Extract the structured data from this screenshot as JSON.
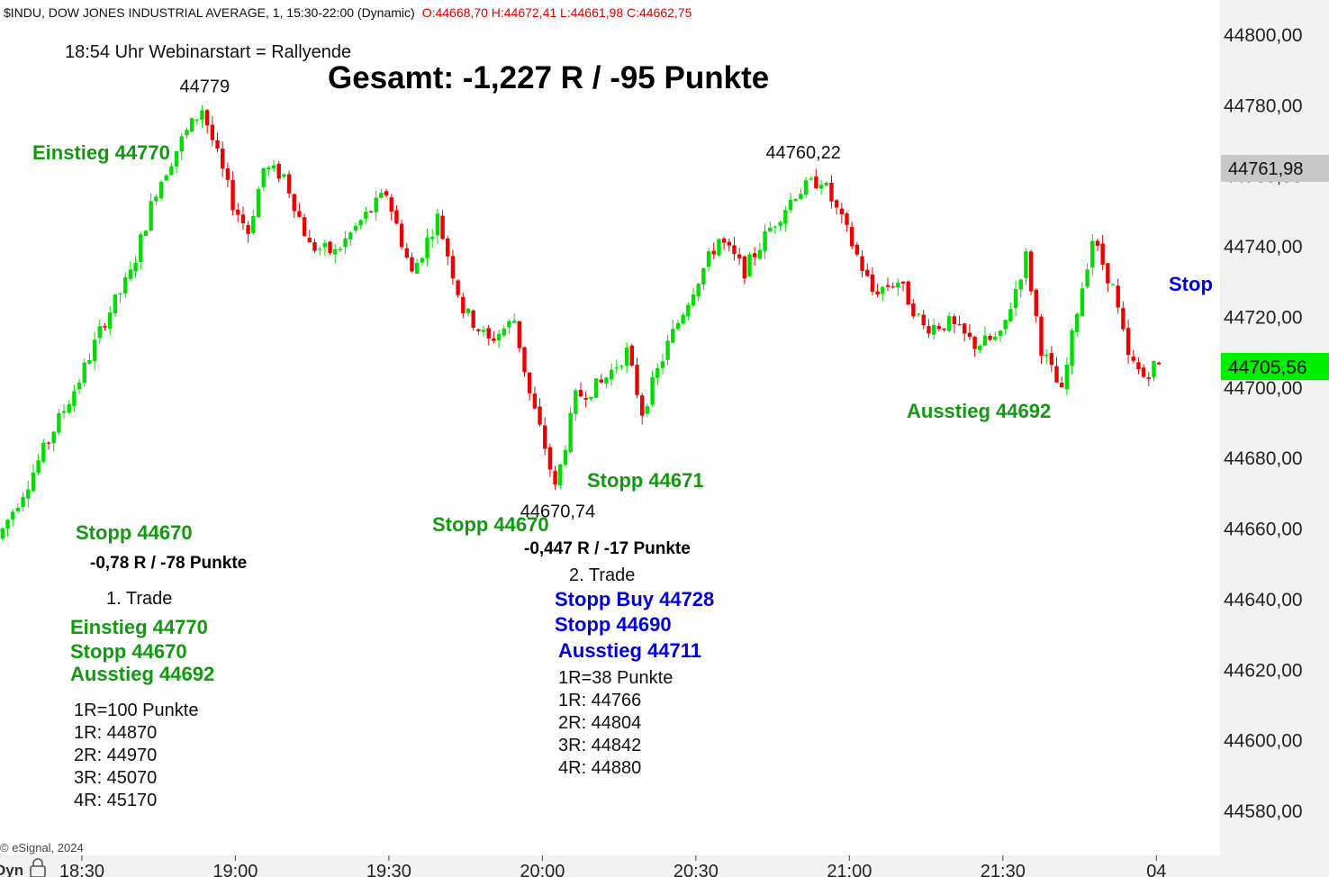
{
  "header": {
    "symbol_text": "$INDU, DOW JONES INDUSTRIAL AVERAGE, 1, 15:30-22:00 (Dynamic)",
    "ohlc_text": "O:44668,70 H:44672,41 L:44661,98 C:44662,75"
  },
  "watermark": "© eSignal, 2024",
  "bottom_left_label": "Dyn",
  "colors": {
    "up": "#00dd00",
    "down": "#ee0000",
    "green_text": "#119911",
    "blue_text": "#0000dd",
    "axis_bg": "#f2f2f2",
    "last_price_bg": "#00ee00",
    "price_tag_bg": "#c8c8c8"
  },
  "chart_data": {
    "type": "candlestick",
    "x_ticks": [
      "18:30",
      "19:00",
      "19:30",
      "20:00",
      "20:30",
      "21:00",
      "21:30",
      "04"
    ],
    "y_ticks": [
      "44800,00",
      "44780,00",
      "44760,00",
      "44740,00",
      "44720,00",
      "44700,00",
      "44680,00",
      "44660,00",
      "44640,00",
      "44620,00",
      "44600,00",
      "44580,00"
    ],
    "ylim": [
      44575,
      44810
    ],
    "x_range_minutes": [
      "18:14",
      "22:01"
    ],
    "price_tags": {
      "tag": "44761,98",
      "last": "44705,56"
    },
    "path_points": [
      [
        "18:14",
        44657
      ],
      [
        "18:20",
        44673
      ],
      [
        "18:25",
        44688
      ],
      [
        "18:30",
        44702
      ],
      [
        "18:35",
        44719
      ],
      [
        "18:40",
        44732
      ],
      [
        "18:45",
        44756
      ],
      [
        "18:50",
        44770
      ],
      [
        "18:54",
        44779
      ],
      [
        "18:58",
        44761
      ],
      [
        "19:00",
        44752
      ],
      [
        "19:03",
        44744
      ],
      [
        "19:06",
        44762
      ],
      [
        "19:10",
        44760
      ],
      [
        "19:15",
        44740
      ],
      [
        "19:20",
        44738
      ],
      [
        "19:25",
        44747
      ],
      [
        "19:30",
        44755
      ],
      [
        "19:35",
        44732
      ],
      [
        "19:40",
        44748
      ],
      [
        "19:45",
        44722
      ],
      [
        "19:50",
        44713
      ],
      [
        "19:55",
        44719
      ],
      [
        "19:58",
        44698
      ],
      [
        "20:01",
        44683
      ],
      [
        "20:03",
        44671
      ],
      [
        "20:07",
        44697
      ],
      [
        "20:12",
        44701
      ],
      [
        "20:17",
        44710
      ],
      [
        "20:20",
        44693
      ],
      [
        "20:25",
        44712
      ],
      [
        "20:30",
        44728
      ],
      [
        "20:35",
        44742
      ],
      [
        "20:40",
        44733
      ],
      [
        "20:45",
        44745
      ],
      [
        "20:50",
        44755
      ],
      [
        "20:55",
        44759
      ],
      [
        "21:00",
        44744
      ],
      [
        "21:05",
        44727
      ],
      [
        "21:10",
        44730
      ],
      [
        "21:15",
        44717
      ],
      [
        "21:20",
        44718
      ],
      [
        "21:25",
        44712
      ],
      [
        "21:30",
        44714
      ],
      [
        "21:35",
        44737
      ],
      [
        "21:38",
        44711
      ],
      [
        "21:42",
        44698
      ],
      [
        "21:45",
        44722
      ],
      [
        "21:48",
        44742
      ],
      [
        "21:52",
        44728
      ],
      [
        "21:55",
        44708
      ],
      [
        "21:58",
        44703
      ],
      [
        "22:00",
        44706
      ]
    ],
    "extreme_labels": [
      {
        "text": "44779",
        "time": "18:54",
        "price": 44779
      },
      {
        "text": "44760,22",
        "time": "20:51",
        "price": 44760.22
      },
      {
        "text": "44670,74",
        "time": "20:03",
        "price": 44670.74
      }
    ]
  },
  "annotations": {
    "webinar": "18:54 Uhr Webinarstart = Rallyende",
    "gesamt": "Gesamt: -1,227 R / -95 Punkte",
    "einstieg_top": "Einstieg 44770",
    "stopp_a": "Stopp 44670",
    "result_1": "-0,78 R / -78 Punkte",
    "trade_1_title": "1. Trade",
    "trade_1_lines": [
      "Einstieg 44770",
      "Stopp 44670",
      "Ausstieg 44692"
    ],
    "trade_1_r": [
      "1R=100 Punkte",
      "1R: 44870",
      "2R: 44970",
      "3R: 45070",
      "4R: 45170"
    ],
    "stopp_b": "Stopp 44670",
    "stopp_c": "Stopp 44671",
    "result_2": "-0,447 R / -17 Punkte",
    "trade_2_title": "2. Trade",
    "trade_2_lines": [
      "Stopp Buy 44728",
      "Stopp 44690",
      "Ausstieg 44711"
    ],
    "trade_2_r": [
      "1R=38 Punkte",
      "1R: 44766",
      "2R: 44804",
      "3R: 44842",
      "4R: 44880"
    ],
    "ausstieg_right": "Ausstieg 44692",
    "stop_right": "Stop"
  }
}
